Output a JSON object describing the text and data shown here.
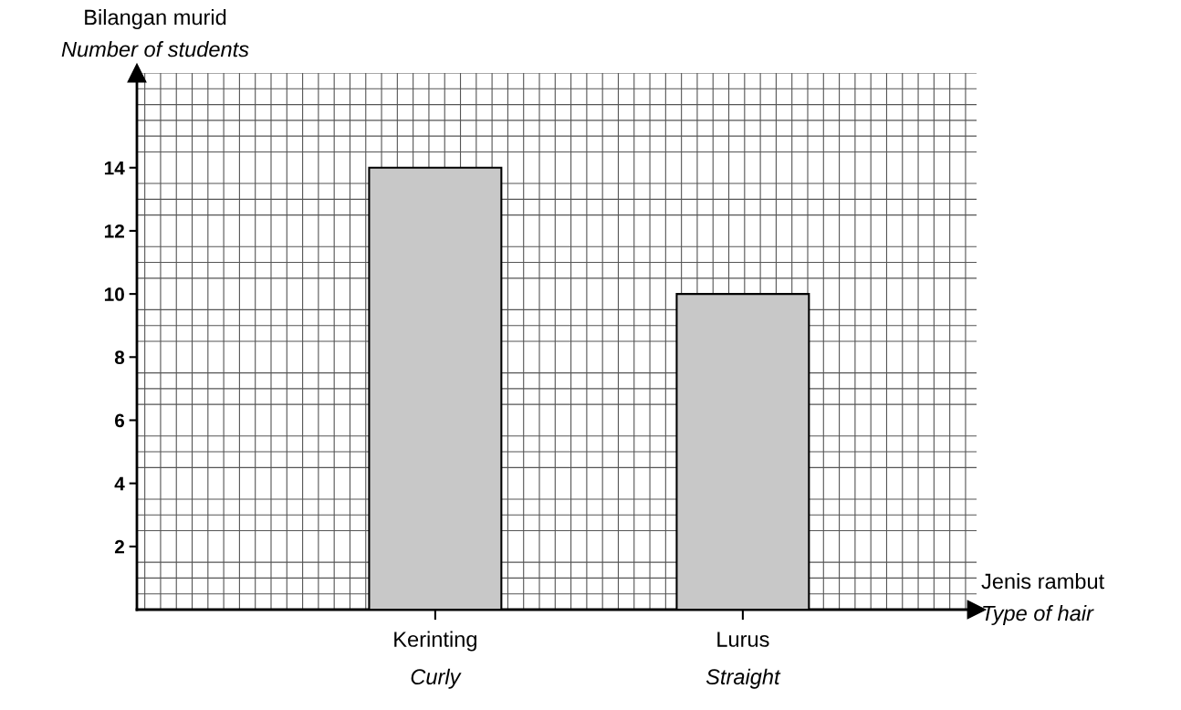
{
  "chart_data": {
    "type": "bar",
    "xlabel": "Jenis rambut\nType of hair",
    "ylabel": "Bilangan murid\nNumber of students",
    "categories": [
      "Kerinting\nCurly",
      "Lurus\nStraight"
    ],
    "values": [
      14,
      10
    ],
    "color": "#c8c8c8",
    "ylim": [
      0,
      17
    ],
    "yticks": [
      2,
      4,
      6,
      8,
      10,
      12,
      14
    ],
    "grid": true
  }
}
